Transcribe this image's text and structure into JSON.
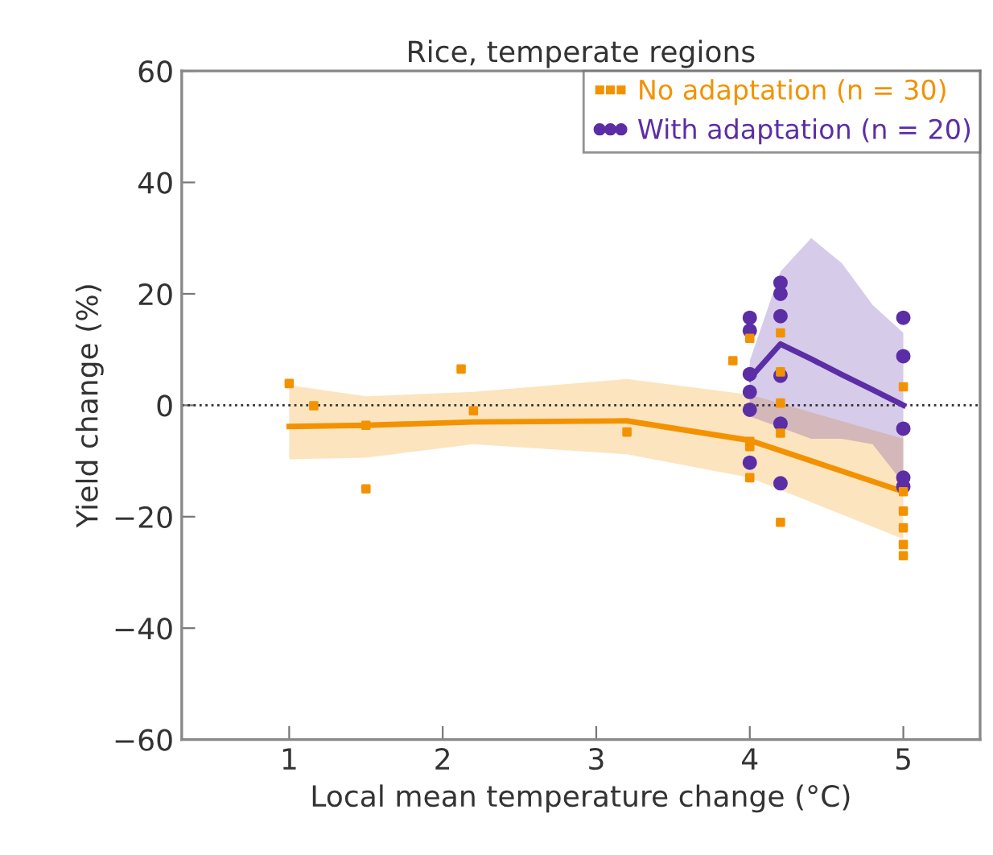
{
  "chart_data": {
    "type": "scatter",
    "title": "Rice, temperate regions",
    "xlabel": "Local mean temperature change (°C)",
    "ylabel": "Yield change (%)",
    "xlim": [
      0.3,
      5.5
    ],
    "ylim": [
      -60,
      60
    ],
    "xticks": [
      1,
      2,
      3,
      4,
      5
    ],
    "yticks": [
      {
        "value": -60,
        "label": "−60"
      },
      {
        "value": -40,
        "label": "−40"
      },
      {
        "value": -20,
        "label": "−20"
      },
      0,
      20,
      40,
      60
    ],
    "grid": false,
    "legend": "top right",
    "ref_lines": [
      {
        "axis": "y",
        "value": 0,
        "color": "#333333",
        "line_style": "dotted"
      }
    ],
    "series": [
      {
        "type": "line",
        "color": "#f39200",
        "marker": "none",
        "x": [
          1,
          1.5,
          2.2,
          3.2,
          4,
          5
        ],
        "values": [
          -3.8,
          -3.6,
          -3,
          -2.8,
          -6.3,
          -15.5
        ],
        "lower": [
          -9.7,
          -9.4,
          -7,
          -8.8,
          -13,
          -24
        ],
        "upper": [
          3.6,
          1.6,
          2.4,
          4.7,
          1.9,
          -6
        ]
      },
      {
        "type": "line",
        "color": "#5b2ea6",
        "marker": "none",
        "x": [
          4,
          4.2,
          4.4,
          4.6,
          4.8,
          5
        ],
        "values": [
          4.8,
          11,
          8.3,
          5.5,
          2.8,
          0
        ],
        "lower": [
          -2,
          -4,
          -6,
          -6,
          -7,
          -14
        ],
        "upper": [
          8,
          24,
          30,
          25.5,
          18,
          13
        ]
      },
      {
        "name": "No adaptation (n = 30)",
        "color": "#f39200",
        "marker": "square",
        "x": [
          1,
          1.16,
          1.5,
          1.5,
          2.12,
          2.2,
          3.2,
          3.89,
          4,
          4,
          4,
          4,
          4.2,
          4.2,
          4.2,
          4.2,
          4.2,
          5,
          5,
          5,
          5,
          5,
          5
        ],
        "values": [
          3.9,
          -0.1,
          -15,
          -3.6,
          6.5,
          -1,
          -4.8,
          8,
          12,
          -6.5,
          -7.4,
          -13,
          13,
          6,
          0.4,
          -5,
          -21,
          3.3,
          -15.5,
          -19,
          -22,
          -25,
          -27
        ]
      },
      {
        "name": "With adaptation (n = 20)",
        "color": "#5b2ea6",
        "marker": "circle",
        "x": [
          4,
          4,
          4,
          4,
          4,
          4,
          4.2,
          4.2,
          4.2,
          4.2,
          4.2,
          4.2,
          5,
          5,
          5,
          5,
          5
        ],
        "values": [
          15.7,
          13.4,
          5.6,
          2.4,
          -0.8,
          -10.3,
          22,
          20,
          16,
          5.3,
          -3.3,
          -14,
          15.7,
          8.8,
          -4.2,
          -13,
          -14.6
        ]
      }
    ]
  }
}
